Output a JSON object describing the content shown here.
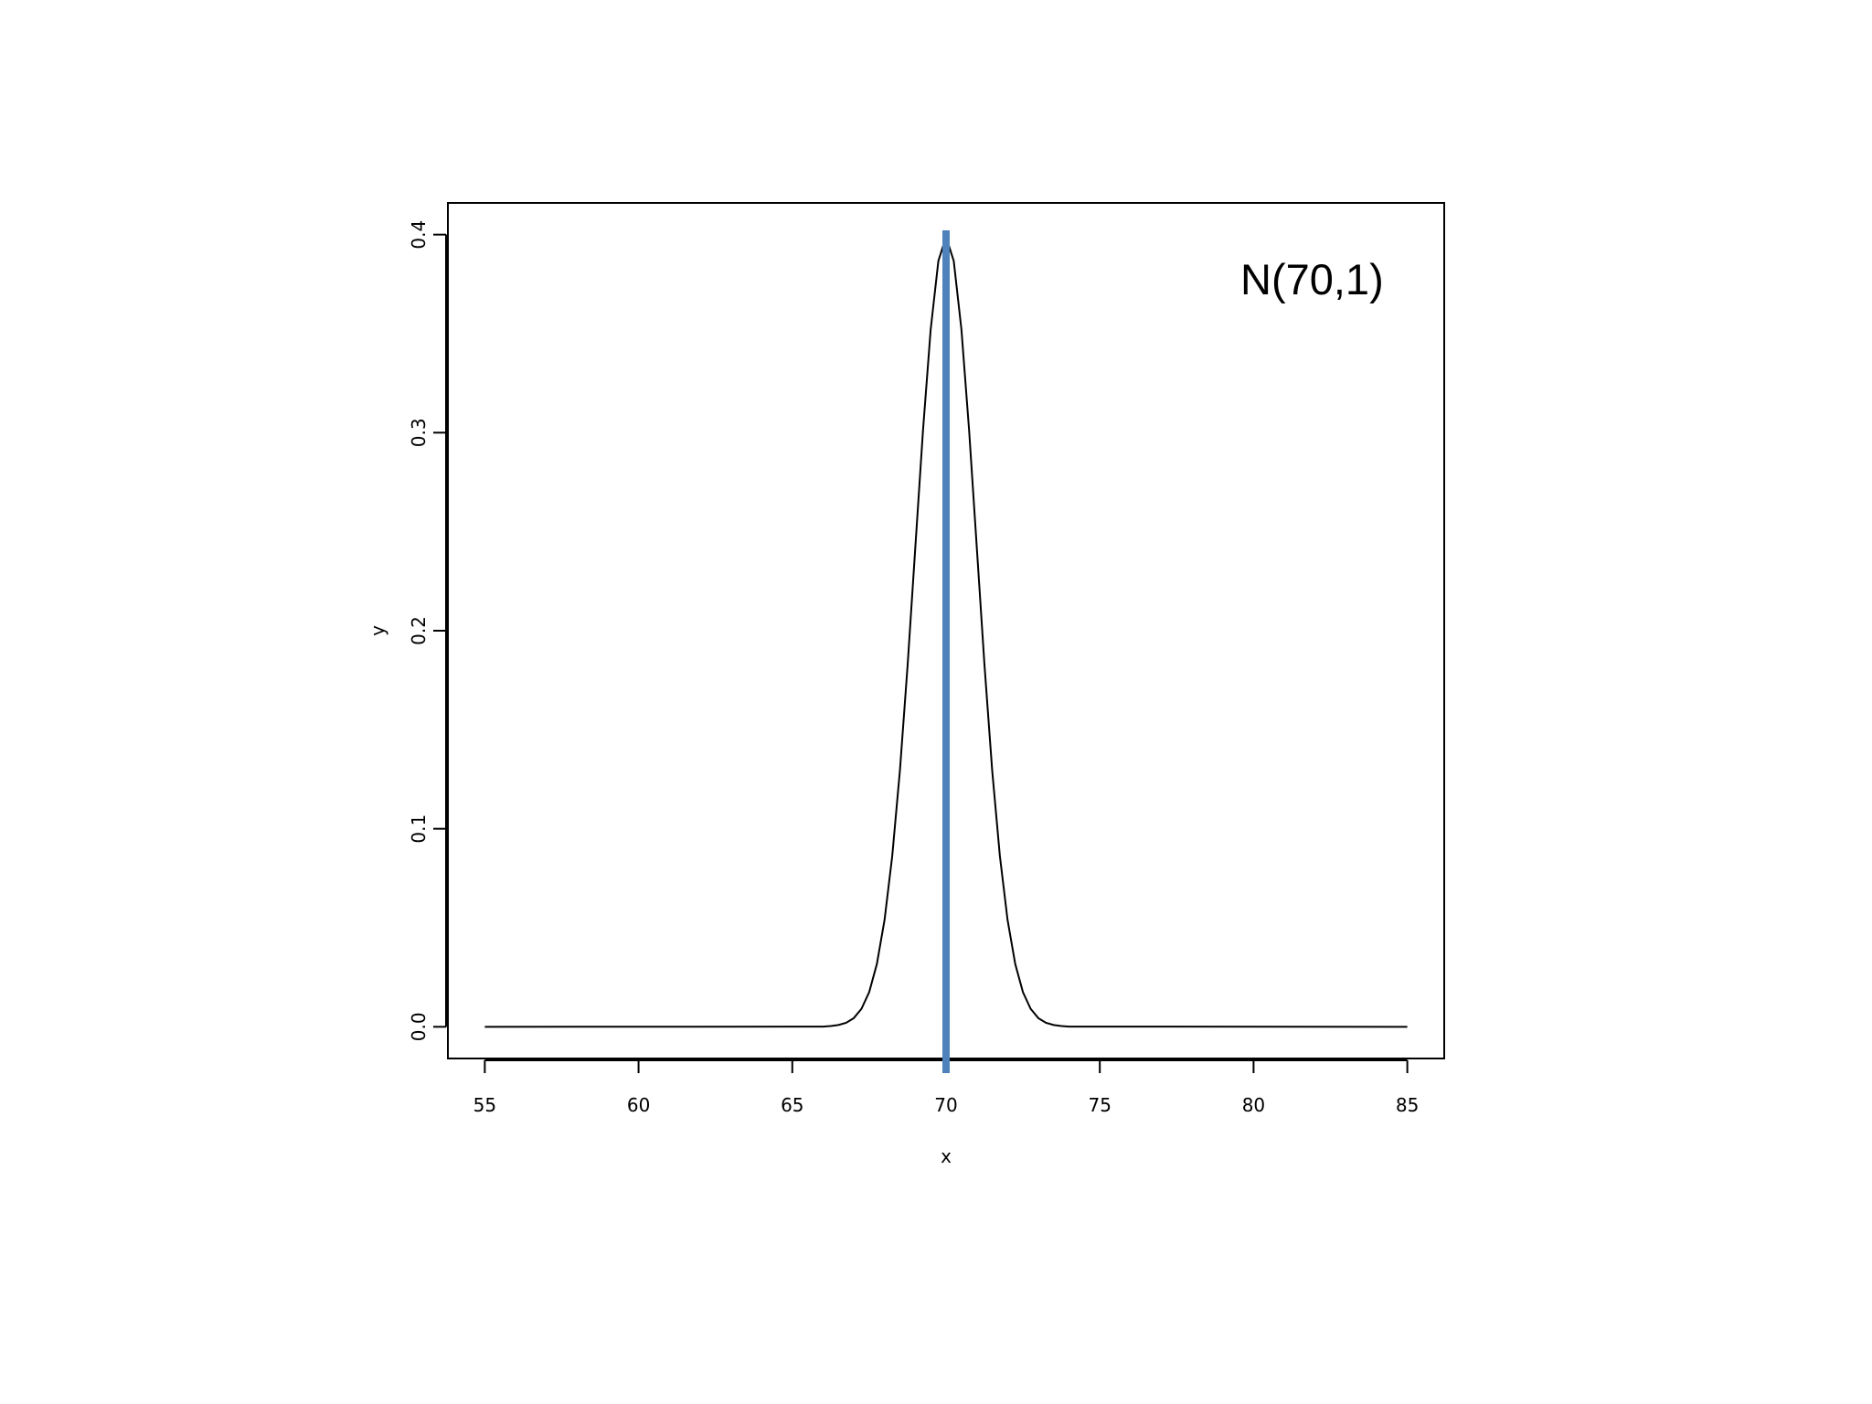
{
  "chart_data": {
    "type": "line",
    "annotation": "N(70,1)",
    "xlabel": "x",
    "ylabel": "y",
    "x": [
      55,
      66,
      66.25,
      66.5,
      66.75,
      67,
      67.25,
      67.5,
      67.75,
      68,
      68.25,
      68.5,
      68.75,
      69,
      69.25,
      69.5,
      69.75,
      70,
      70.25,
      70.5,
      70.75,
      71,
      71.25,
      71.5,
      71.75,
      72,
      72.25,
      72.5,
      72.75,
      73,
      73.25,
      73.5,
      73.75,
      74,
      85
    ],
    "values": [
      0,
      0.0001,
      0.0004,
      0.0009,
      0.002,
      0.0044,
      0.0091,
      0.0175,
      0.0317,
      0.054,
      0.0863,
      0.1295,
      0.1826,
      0.242,
      0.3011,
      0.3521,
      0.3867,
      0.3989,
      0.3867,
      0.3521,
      0.3011,
      0.242,
      0.1826,
      0.1295,
      0.0863,
      0.054,
      0.0317,
      0.0175,
      0.0091,
      0.0044,
      0.002,
      0.0009,
      0.0004,
      0.0001,
      0
    ],
    "color": "#000000",
    "vline": {
      "x": 70,
      "color": "#4f81bd"
    },
    "xlim": [
      53.8,
      86.2
    ],
    "ylim": [
      -0.016,
      0.416
    ],
    "xticks": [
      55,
      60,
      65,
      70,
      75,
      80,
      85
    ],
    "yticks": [
      {
        "value": 0,
        "label": "0.0"
      },
      0.1,
      0.2,
      0.3,
      0.4
    ]
  }
}
